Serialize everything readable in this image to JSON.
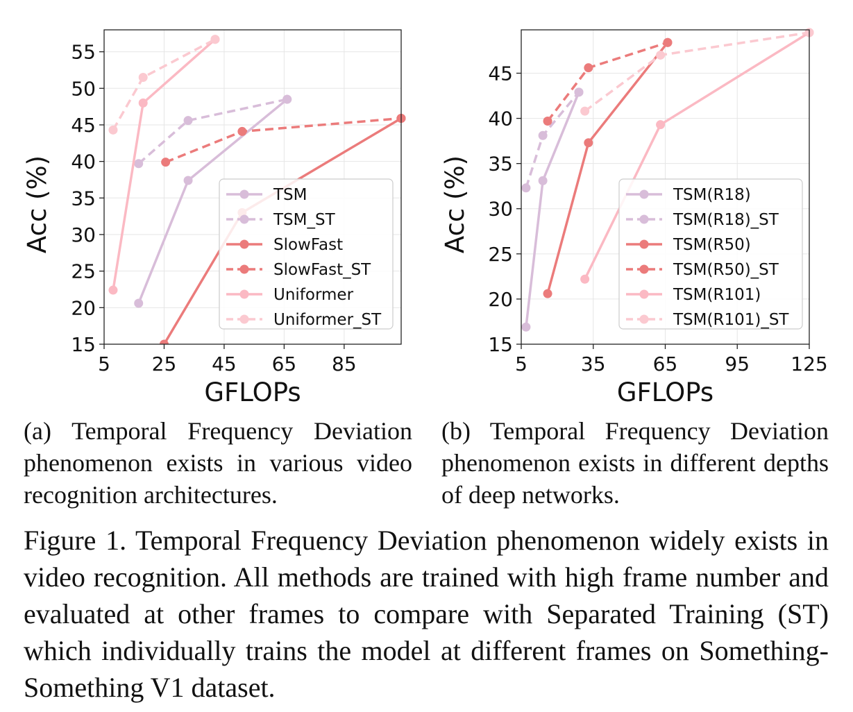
{
  "chart_data": [
    {
      "type": "line",
      "xlabel": "GFLOPs",
      "ylabel": "Acc (%)",
      "xlim": [
        5,
        104
      ],
      "ylim": [
        15,
        58
      ],
      "xticks": [
        5,
        25,
        45,
        65,
        85
      ],
      "yticks": [
        15,
        20,
        25,
        30,
        35,
        40,
        45,
        50,
        55
      ],
      "grid": true,
      "legend_position": "bottom-right",
      "series": [
        {
          "name": "TSM",
          "color": "#d8bdd9",
          "dashed": false,
          "points": [
            [
              16.5,
              20.6
            ],
            [
              33,
              37.4
            ],
            [
              66,
              48.5
            ]
          ]
        },
        {
          "name": "TSM_ST",
          "color": "#d8bdd9",
          "dashed": true,
          "points": [
            [
              16.5,
              39.7
            ],
            [
              33,
              45.6
            ],
            [
              66,
              48.5
            ]
          ]
        },
        {
          "name": "SlowFast",
          "color": "#eb7b7b",
          "dashed": false,
          "points": [
            [
              25,
              15.0
            ],
            [
              51,
              33.0
            ],
            [
              104,
              45.9
            ]
          ]
        },
        {
          "name": "SlowFast_ST",
          "color": "#eb7b7b",
          "dashed": true,
          "points": [
            [
              25.5,
              39.9
            ],
            [
              51,
              44.1
            ],
            [
              104,
              45.9
            ]
          ]
        },
        {
          "name": "Uniformer",
          "color": "#fbb9c3",
          "dashed": false,
          "points": [
            [
              8,
              22.4
            ],
            [
              18,
              48.0
            ],
            [
              42,
              56.7
            ]
          ]
        },
        {
          "name": "Uniformer_ST",
          "color": "#fbc9d0",
          "dashed": true,
          "points": [
            [
              8,
              44.3
            ],
            [
              18,
              51.5
            ],
            [
              42,
              56.7
            ]
          ]
        }
      ]
    },
    {
      "type": "line",
      "xlabel": "GFLOPs",
      "ylabel": "Acc (%)",
      "xlim": [
        5,
        125
      ],
      "ylim": [
        15,
        49.8
      ],
      "xticks": [
        5,
        35,
        65,
        95,
        125
      ],
      "yticks": [
        15,
        20,
        25,
        30,
        35,
        40,
        45
      ],
      "grid": true,
      "legend_position": "bottom-right",
      "series": [
        {
          "name": "TSM(R18)",
          "color": "#d8bdd9",
          "dashed": false,
          "points": [
            [
              7,
              16.9
            ],
            [
              14,
              33.1
            ],
            [
              29,
              42.9
            ]
          ]
        },
        {
          "name": "TSM(R18)_ST",
          "color": "#d8bdd9",
          "dashed": true,
          "points": [
            [
              7,
              32.3
            ],
            [
              14,
              38.1
            ],
            [
              29,
              42.9
            ]
          ]
        },
        {
          "name": "TSM(R50)",
          "color": "#eb7b7b",
          "dashed": false,
          "points": [
            [
              16,
              20.6
            ],
            [
              33,
              37.3
            ],
            [
              66,
              48.4
            ]
          ]
        },
        {
          "name": "TSM(R50)_ST",
          "color": "#eb7b7b",
          "dashed": true,
          "points": [
            [
              16,
              39.7
            ],
            [
              33,
              45.6
            ],
            [
              66,
              48.4
            ]
          ]
        },
        {
          "name": "TSM(R101)",
          "color": "#fbb9c3",
          "dashed": false,
          "points": [
            [
              31.5,
              22.2
            ],
            [
              63,
              39.3
            ],
            [
              125,
              49.5
            ]
          ]
        },
        {
          "name": "TSM(R101)_ST",
          "color": "#fbc9d0",
          "dashed": true,
          "points": [
            [
              31.5,
              40.8
            ],
            [
              63,
              47.0
            ],
            [
              125,
              49.5
            ]
          ]
        }
      ]
    }
  ],
  "captions": {
    "a": "(a) Temporal Frequency Deviation phenomenon exists in various video recognition architectures.",
    "b": "(b) Temporal Frequency Deviation phenomenon exists in different depths of deep networks.",
    "figure": "Figure 1.  Temporal Frequency Deviation phenomenon widely exists in video recognition.  All methods are trained with high frame number and evaluated at other frames to compare with Separated Training (ST) which individually trains the model at different frames on Something-Something V1 dataset."
  }
}
